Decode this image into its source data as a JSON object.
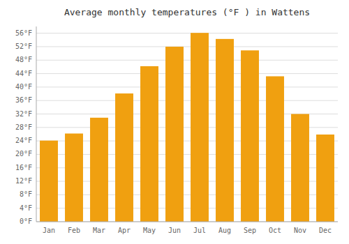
{
  "chart_data": {
    "type": "bar",
    "title": "Average monthly temperatures (°F ) in Wattens",
    "categories": [
      "Jan",
      "Feb",
      "Mar",
      "Apr",
      "May",
      "Jun",
      "Jul",
      "Aug",
      "Sep",
      "Oct",
      "Nov",
      "Dec"
    ],
    "values": [
      24.1,
      26.2,
      30.9,
      38.1,
      46.2,
      52.0,
      56.1,
      54.3,
      50.9,
      43.2,
      32.0,
      25.9
    ],
    "color": "#F0A010",
    "ylim": [
      0,
      58
    ],
    "yticks": [
      {
        "value": 0,
        "label": "0°F"
      },
      {
        "value": 4,
        "label": "4°F"
      },
      {
        "value": 8,
        "label": "8°F"
      },
      {
        "value": 12,
        "label": "12°F"
      },
      {
        "value": 16,
        "label": "16°F"
      },
      {
        "value": 20,
        "label": "20°F"
      },
      {
        "value": 24,
        "label": "24°F"
      },
      {
        "value": 28,
        "label": "28°F"
      },
      {
        "value": 32,
        "label": "32°F"
      },
      {
        "value": 36,
        "label": "36°F"
      },
      {
        "value": 40,
        "label": "40°F"
      },
      {
        "value": 44,
        "label": "44°F"
      },
      {
        "value": 48,
        "label": "48°F"
      },
      {
        "value": 52,
        "label": "52°F"
      },
      {
        "value": 56,
        "label": "56°F"
      }
    ],
    "grid": true
  }
}
